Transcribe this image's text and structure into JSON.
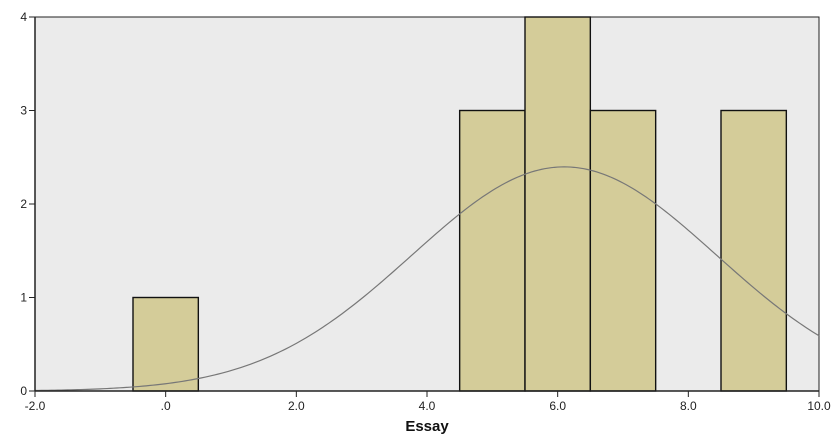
{
  "chart_data": {
    "type": "bar",
    "subtype": "histogram",
    "xlabel": "Essay",
    "ylabel": "",
    "xlim": [
      -2.0,
      10.0
    ],
    "ylim": [
      0,
      4
    ],
    "x_ticks": [
      -2.0,
      0.0,
      2.0,
      4.0,
      6.0,
      8.0,
      10.0
    ],
    "x_tick_labels": [
      "-2.0",
      ".0",
      "2.0",
      "4.0",
      "6.0",
      "8.0",
      "10.0"
    ],
    "y_ticks": [
      0,
      1,
      2,
      3,
      4
    ],
    "y_tick_labels": [
      "0",
      "1",
      "2",
      "3",
      "4"
    ],
    "bin_width": 1.0,
    "bins": [
      {
        "center": 0,
        "count": 1
      },
      {
        "center": 5,
        "count": 3
      },
      {
        "center": 6,
        "count": 4
      },
      {
        "center": 7,
        "count": 3
      },
      {
        "center": 9,
        "count": 3
      }
    ],
    "normal_curve": {
      "mean": 6.1,
      "std_dev": 2.33,
      "n": 14
    },
    "grid": false,
    "colors": {
      "plot_background": "#ebebeb",
      "bar_fill": "#d4cc99",
      "bar_stroke": "#111111",
      "curve": "#777777",
      "axis": "#222222"
    }
  }
}
